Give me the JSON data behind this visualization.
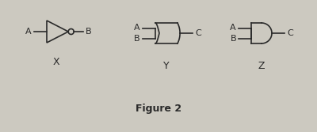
{
  "title": "Figure 2",
  "gate_x_label": "X",
  "gate_y_label": "Y",
  "gate_z_label": "Z",
  "line_color": "#2a2a2a",
  "bg_color": "#ccc9c0",
  "text_color": "#1a1a1a",
  "title_fontsize": 9,
  "label_fontsize": 8,
  "fig_width": 4.0,
  "fig_height": 1.67,
  "dpi": 100
}
